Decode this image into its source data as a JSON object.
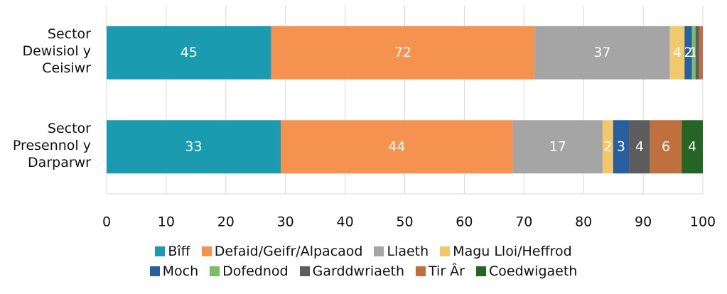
{
  "chart_data": {
    "type": "bar",
    "orientation": "horizontal",
    "stacking": "percent",
    "categories": [
      "Sector Dewisiol y Ceisiwr",
      "Sector Presennol y Darparwr"
    ],
    "series": [
      {
        "name": "Bîff",
        "color": "#1b9bb0",
        "values": [
          45,
          33
        ]
      },
      {
        "name": "Defaid/Geifr/Alpacaod",
        "color": "#f5924f",
        "values": [
          72,
          44
        ]
      },
      {
        "name": "Llaeth",
        "color": "#a5a5a5",
        "values": [
          37,
          17
        ]
      },
      {
        "name": "Magu Lloi/Heffrod",
        "color": "#f1c86a",
        "values": [
          4,
          2
        ]
      },
      {
        "name": "Moch",
        "color": "#285fa0",
        "values": [
          2,
          3
        ]
      },
      {
        "name": "Dofednod",
        "color": "#79bf68",
        "values": [
          1,
          0
        ]
      },
      {
        "name": "Garddwriaeth",
        "color": "#5d5d5d",
        "values": [
          1,
          4
        ],
        "value_labels": [
          null,
          "4"
        ]
      },
      {
        "name": "Tir Âr",
        "color": "#c06f3e",
        "values": [
          1,
          6
        ],
        "value_labels": [
          null,
          "6"
        ]
      },
      {
        "name": "Coedwigaeth",
        "color": "#246524",
        "values": [
          0,
          4
        ],
        "value_labels": [
          null,
          "4"
        ]
      }
    ],
    "xlim": [
      0,
      100
    ],
    "xticks": [
      0,
      10,
      20,
      30,
      40,
      50,
      60,
      70,
      80,
      90,
      100
    ],
    "grid": true,
    "legend": "bottom"
  }
}
